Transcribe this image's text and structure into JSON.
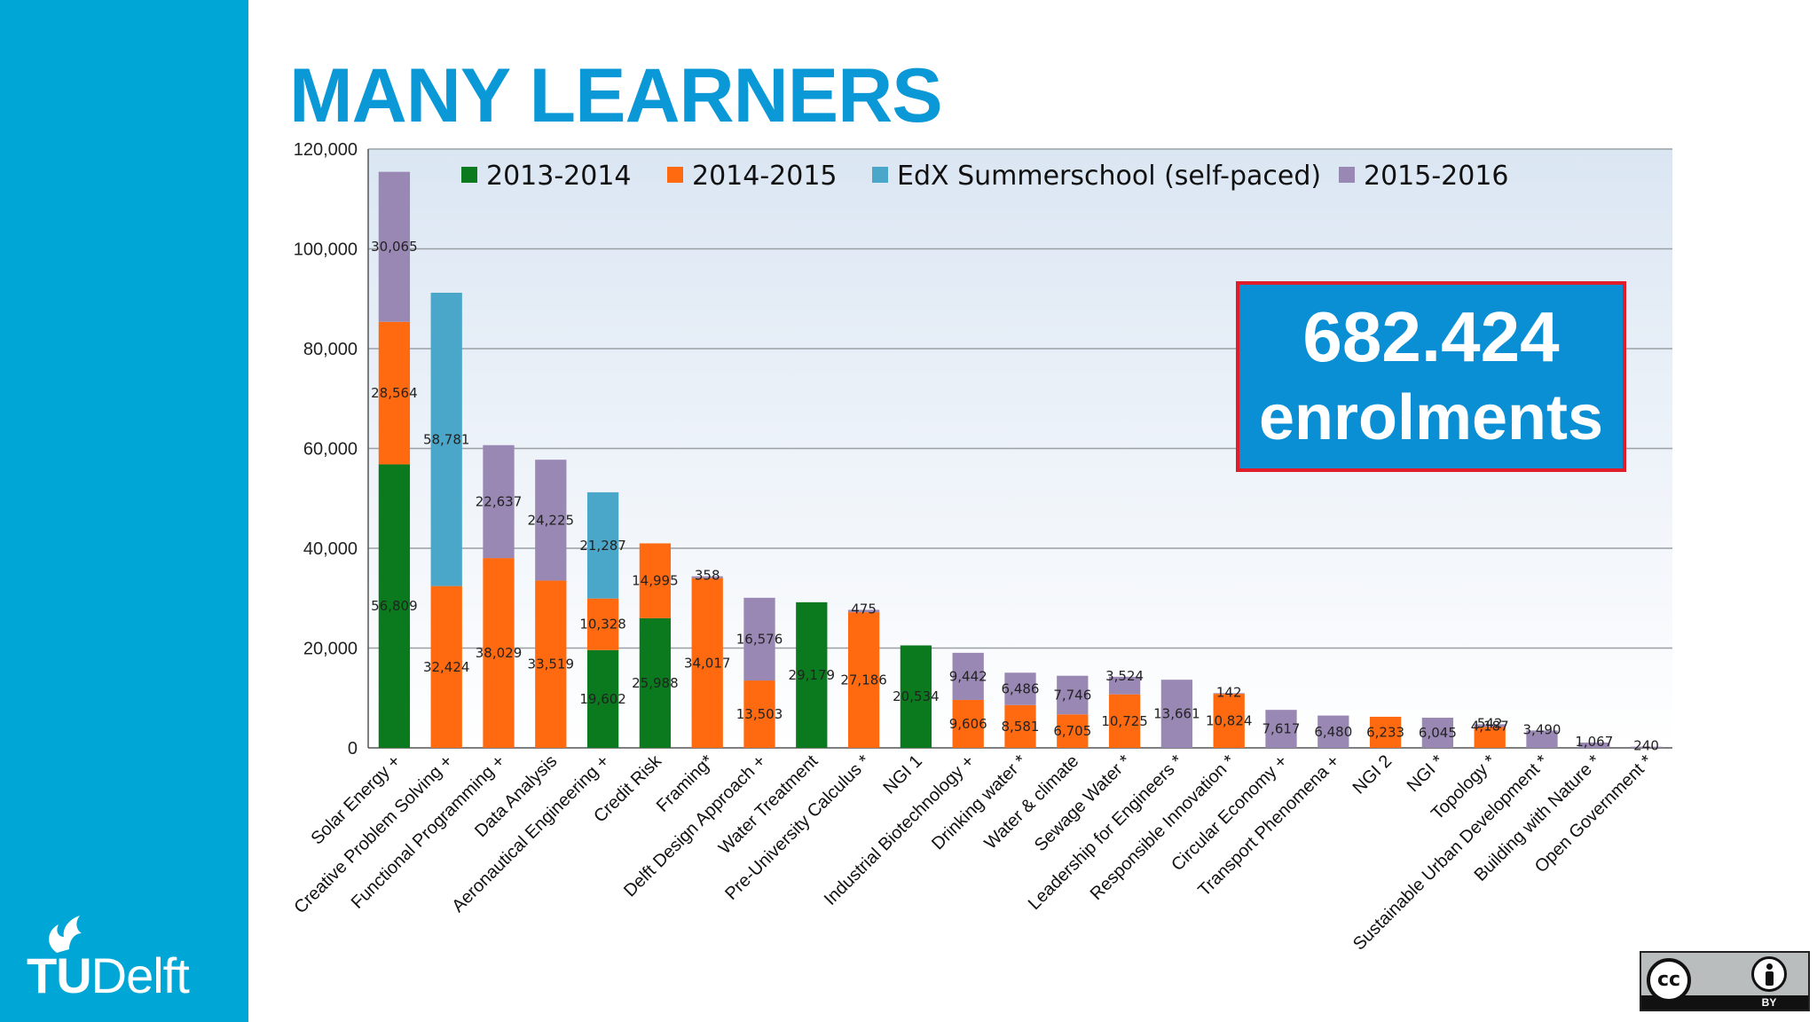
{
  "slide": {
    "title": "MANY LEARNERS"
  },
  "brand": {
    "logo_tu": "TU",
    "logo_delft": "Delft",
    "accent": "#00a6d6"
  },
  "callout": {
    "number": "682.424",
    "label": "enrolments"
  },
  "license": {
    "cc": "cc",
    "by": "BY"
  },
  "chart_data": {
    "type": "bar",
    "stacked": true,
    "title": "",
    "xlabel": "",
    "ylabel": "",
    "ylim": [
      0,
      120000
    ],
    "yticks": [
      "0",
      "20,000",
      "40,000",
      "60,000",
      "80,000",
      "100,000",
      "120,000"
    ],
    "ytick_values": [
      0,
      20000,
      40000,
      60000,
      80000,
      100000,
      120000
    ],
    "grid": true,
    "legend_position": "top",
    "series": [
      {
        "name": "2013-2014",
        "color": "#0b7a1e"
      },
      {
        "name": "2014-2015",
        "color": "#ff6a10"
      },
      {
        "name": "EdX Summerschool (self-paced)",
        "color": "#4ba7c9"
      },
      {
        "name": "2015-2016",
        "color": "#9a88b4"
      }
    ],
    "bars": [
      {
        "category": "Solar Energy +",
        "segments": [
          {
            "series": 0,
            "value": 56809,
            "label": "56,809"
          },
          {
            "series": 1,
            "value": 28564,
            "label": "28,564"
          },
          {
            "series": 3,
            "value": 30065,
            "label": "30,065"
          }
        ]
      },
      {
        "category": "Creative Problem Solving +",
        "segments": [
          {
            "series": 1,
            "value": 32424,
            "label": "32,424"
          },
          {
            "series": 2,
            "value": 58781,
            "label": "58,781"
          }
        ]
      },
      {
        "category": "Functional Programming +",
        "segments": [
          {
            "series": 1,
            "value": 38029,
            "label": "38,029"
          },
          {
            "series": 3,
            "value": 22637,
            "label": "22,637"
          }
        ]
      },
      {
        "category": "Data Analysis",
        "segments": [
          {
            "series": 1,
            "value": 33519,
            "label": "33,519"
          },
          {
            "series": 3,
            "value": 24225,
            "label": "24,225"
          }
        ]
      },
      {
        "category": "Aeronautical Engineering +",
        "segments": [
          {
            "series": 0,
            "value": 19602,
            "label": "19,602"
          },
          {
            "series": 1,
            "value": 10328,
            "label": "10,328"
          },
          {
            "series": 2,
            "value": 21287,
            "label": "21,287"
          }
        ]
      },
      {
        "category": "Credit Risk",
        "segments": [
          {
            "series": 0,
            "value": 25988,
            "label": "25,988"
          },
          {
            "series": 1,
            "value": 14995,
            "label": "14,995"
          }
        ]
      },
      {
        "category": "Framing*",
        "segments": [
          {
            "series": 1,
            "value": 34017,
            "label": "34,017"
          },
          {
            "series": 3,
            "value": 358,
            "label": "358"
          }
        ]
      },
      {
        "category": "Delft Design Approach +",
        "segments": [
          {
            "series": 1,
            "value": 13503,
            "label": "13,503"
          },
          {
            "series": 3,
            "value": 16576,
            "label": "16,576"
          }
        ]
      },
      {
        "category": "Water Treatment",
        "segments": [
          {
            "series": 0,
            "value": 29179,
            "label": "29,179"
          }
        ]
      },
      {
        "category": "Pre-University Calculus *",
        "segments": [
          {
            "series": 1,
            "value": 27186,
            "label": "27,186"
          },
          {
            "series": 3,
            "value": 475,
            "label": "475"
          }
        ]
      },
      {
        "category": "NGI 1",
        "segments": [
          {
            "series": 0,
            "value": 20534,
            "label": "20,534"
          }
        ]
      },
      {
        "category": "Industrial Biotechnology +",
        "segments": [
          {
            "series": 1,
            "value": 9606,
            "label": "9,606"
          },
          {
            "series": 3,
            "value": 9442,
            "label": "9,442"
          }
        ]
      },
      {
        "category": "Drinking water *",
        "segments": [
          {
            "series": 1,
            "value": 8581,
            "label": "8,581"
          },
          {
            "series": 3,
            "value": 6486,
            "label": "6,486"
          }
        ]
      },
      {
        "category": "Water & climate",
        "segments": [
          {
            "series": 1,
            "value": 6705,
            "label": "6,705"
          },
          {
            "series": 3,
            "value": 7746,
            "label": "7,746"
          }
        ]
      },
      {
        "category": "Sewage Water *",
        "segments": [
          {
            "series": 1,
            "value": 10725,
            "label": "10,725"
          },
          {
            "series": 3,
            "value": 3524,
            "label": "3,524"
          }
        ]
      },
      {
        "category": "Leadership for Engineers *",
        "segments": [
          {
            "series": 3,
            "value": 13661,
            "label": "13,661"
          }
        ]
      },
      {
        "category": "Responsible Innovation *",
        "segments": [
          {
            "series": 1,
            "value": 10824,
            "label": "10,824"
          },
          {
            "series": 3,
            "value": 142,
            "label": "142"
          }
        ]
      },
      {
        "category": "Circular Economy +",
        "segments": [
          {
            "series": 3,
            "value": 7617,
            "label": "7,617"
          }
        ]
      },
      {
        "category": "Transport Phenomena +",
        "segments": [
          {
            "series": 3,
            "value": 6480,
            "label": "6,480"
          }
        ]
      },
      {
        "category": "NGI 2",
        "segments": [
          {
            "series": 1,
            "value": 6233,
            "label": "6,233"
          }
        ]
      },
      {
        "category": "NGI *",
        "segments": [
          {
            "series": 3,
            "value": 6045,
            "label": "6,045"
          }
        ]
      },
      {
        "category": "Topology *",
        "segments": [
          {
            "series": 1,
            "value": 4187,
            "label": "4,187"
          },
          {
            "series": 3,
            "value": 542,
            "label": "542"
          }
        ]
      },
      {
        "category": "Sustainable Urban Development *",
        "segments": [
          {
            "series": 3,
            "value": 3490,
            "label": "3,490"
          }
        ]
      },
      {
        "category": "Building with Nature *",
        "segments": [
          {
            "series": 3,
            "value": 1067,
            "label": "1,067"
          }
        ]
      },
      {
        "category": "Open Government *",
        "segments": [
          {
            "series": 3,
            "value": 240,
            "label": "240"
          }
        ]
      }
    ]
  }
}
